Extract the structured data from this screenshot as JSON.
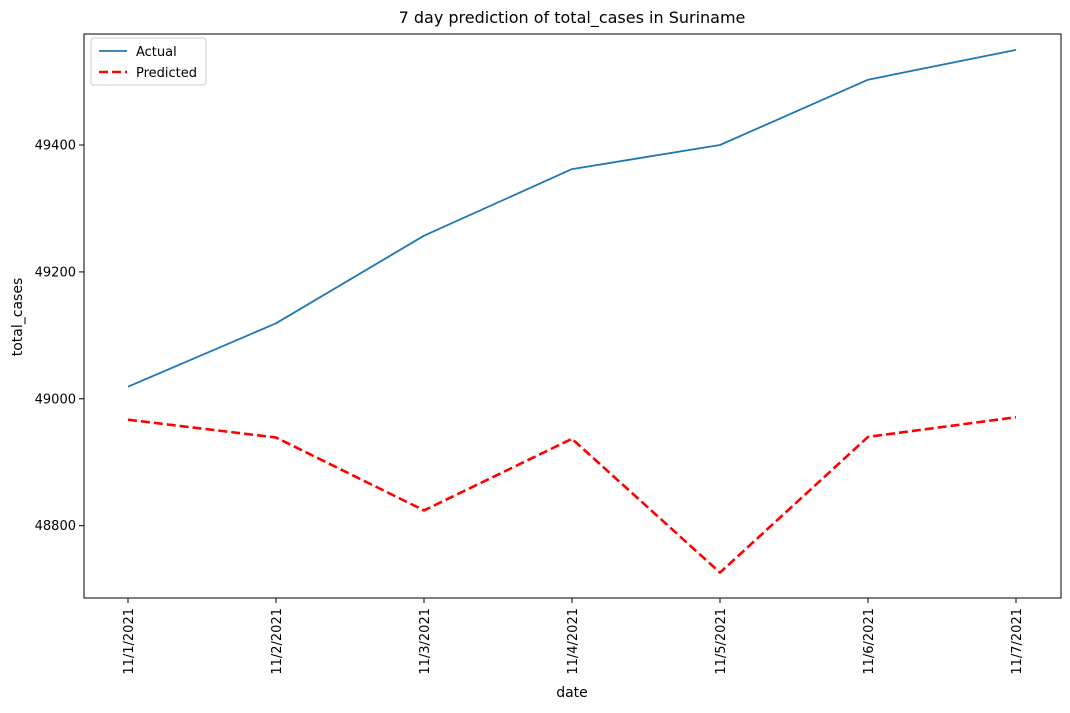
{
  "chart_data": {
    "type": "line",
    "title": "7 day prediction of total_cases in Suriname",
    "xlabel": "date",
    "ylabel": "total_cases",
    "categories": [
      "11/1/2021",
      "11/2/2021",
      "11/3/2021",
      "11/4/2021",
      "11/5/2021",
      "11/6/2021",
      "11/7/2021"
    ],
    "yticks": [
      48800,
      49000,
      49200,
      49400
    ],
    "ylim": [
      48686,
      49575
    ],
    "grid": false,
    "legend_position": "top-left",
    "series": [
      {
        "name": "Actual",
        "color": "#1f77b4",
        "style": "solid",
        "values": [
          49019,
          49119,
          49257,
          49362,
          49400,
          49503,
          49550
        ]
      },
      {
        "name": "Predicted",
        "color": "#ff0000",
        "style": "dashed",
        "values": [
          48967,
          48939,
          48824,
          48937,
          48726,
          48940,
          48971
        ]
      }
    ]
  }
}
